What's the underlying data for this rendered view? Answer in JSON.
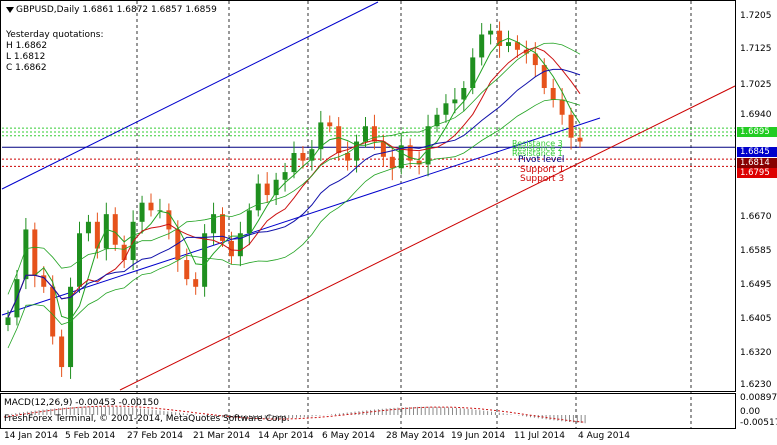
{
  "chart_header": {
    "symbol_line": "GBPUSD,Daily  1.6861 1.6872 1.6857 1.6859",
    "yesterday_title": "Yesterday quotations:",
    "h_line": "H 1.6862",
    "l_line": "L 1.6812",
    "c_line": "C 1.6862"
  },
  "macd": {
    "label": "MACD(12,26,9) -0.00453 -0.00150",
    "copyright": "FreshForex Terminal, © 2001-2014, MetaQuotes Software Corp.",
    "scale": [
      "0.00897",
      "0.00",
      "-0.00517"
    ]
  },
  "levels": {
    "pivot_label": "Pivot level",
    "support1_label": "Support 1",
    "support3_label": "Support 3",
    "resistance_labels": [
      "Resistance 3",
      "Resistance 2",
      "Resistance 1"
    ]
  },
  "badges": {
    "green": "1.6895",
    "blue": "1.6845",
    "darkred1": "1.6814",
    "red": "1.6795"
  },
  "colors": {
    "candle_up": "#1f8f1f",
    "candle_down": "#e6521b",
    "bollinger": "#22a322",
    "ma_blue": "#1111aa",
    "ma_red": "#cc1111",
    "channel_blue": "#0000cc",
    "channel_red": "#cc0000",
    "support": "#cc0000",
    "pivot": "#000080",
    "resistance": "#33cc33"
  },
  "chart_data": {
    "type": "candlestick",
    "symbol": "GBPUSD",
    "timeframe": "Daily",
    "price_axis": [
      "1.7205",
      "1.7125",
      "1.7025",
      "1.6940",
      "1.6845",
      "1.6795",
      "1.6670",
      "1.6585",
      "1.6495",
      "1.6405",
      "1.6320",
      "1.6230"
    ],
    "dates": [
      "14 Jan 2014",
      "5 Feb 2014",
      "27 Feb 2014",
      "21 Mar 2014",
      "14 Apr 2014",
      "6 May 2014",
      "28 May 2014",
      "19 Jun 2014",
      "11 Jul 2014",
      "4 Aug 2014"
    ],
    "ylim": [
      1.621,
      1.7225
    ],
    "close_path": [
      1.64,
      1.65,
      1.663,
      1.651,
      1.648,
      1.635,
      1.627,
      1.648,
      1.662,
      1.665,
      1.658,
      1.667,
      1.659,
      1.655,
      1.665,
      1.67,
      1.668,
      1.668,
      1.663,
      1.655,
      1.65,
      1.648,
      1.662,
      1.667,
      1.66,
      1.656,
      1.662,
      1.668,
      1.675,
      1.672,
      1.676,
      1.678,
      1.683,
      1.681,
      1.684,
      1.691,
      1.69,
      1.683,
      1.681,
      1.686,
      1.69,
      1.686,
      1.682,
      1.679,
      1.685,
      1.681,
      1.68,
      1.69,
      1.693,
      1.696,
      1.697,
      1.7,
      1.708,
      1.714,
      1.715,
      1.711,
      1.712,
      1.71,
      1.709,
      1.706,
      1.7,
      1.697,
      1.693,
      1.687,
      1.686
    ],
    "support3": 1.6795,
    "support1": 1.6814,
    "pivot": 1.6845,
    "resistance1": 1.6875,
    "resistance2": 1.6885,
    "resistance3": 1.6895,
    "macd_value": -0.00453,
    "macd_signal": -0.0015
  }
}
